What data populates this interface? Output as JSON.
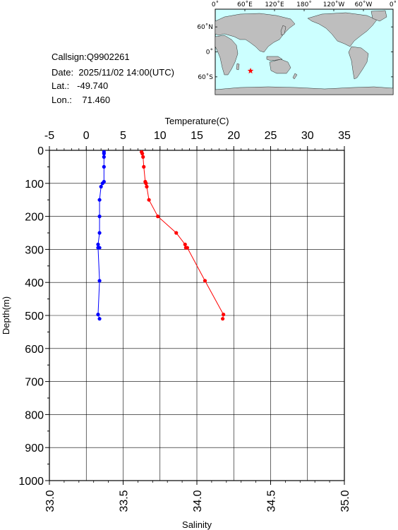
{
  "meta": {
    "callsign_label": "Callsign:",
    "callsign": "Q9902261",
    "date_label": "Date:",
    "date": "2025/11/02 14:00(UTC)",
    "lat_label": "Lat.:",
    "lat": "-49.740",
    "lon_label": "Lon.:",
    "lon": "71.460"
  },
  "map": {
    "lon_labels": [
      "0˚",
      "60˚E",
      "120˚E",
      "180˚",
      "120˚W",
      "60˚W",
      "0˚"
    ],
    "lat_labels": [
      "60˚N",
      "0˚",
      "60˚S"
    ],
    "station_lat": -49.74,
    "station_lon": 71.46,
    "colors": {
      "ocean": "#ccffff",
      "land": "#bebebe",
      "marker": "#ff0000"
    }
  },
  "chart_data": {
    "type": "line",
    "ylabel": "Depth(m)",
    "ylim": [
      1000,
      0
    ],
    "y_ticks": [
      "0",
      "100",
      "200",
      "300",
      "400",
      "500",
      "600",
      "700",
      "800",
      "900",
      "1000"
    ],
    "x_top": {
      "label": "Temperature(C)",
      "lim": [
        -5,
        35
      ],
      "ticks": [
        "-5",
        "0",
        "5",
        "10",
        "15",
        "20",
        "25",
        "30",
        "35"
      ]
    },
    "x_bottom": {
      "label": "Salinity",
      "lim": [
        33.0,
        35.0
      ],
      "ticks": [
        "33.0",
        "33.5",
        "34.0",
        "34.5",
        "35.0"
      ]
    },
    "grid": true,
    "series": [
      {
        "axis": "top",
        "color": "#ff0000",
        "points": [
          [
            7.5,
            5
          ],
          [
            7.6,
            10
          ],
          [
            7.7,
            20
          ],
          [
            7.8,
            50
          ],
          [
            8.0,
            95
          ],
          [
            8.1,
            100
          ],
          [
            8.2,
            110
          ],
          [
            8.5,
            150
          ],
          [
            9.7,
            200
          ],
          [
            12.2,
            250
          ],
          [
            13.4,
            285
          ],
          [
            13.5,
            295
          ],
          [
            13.7,
            295
          ],
          [
            16.1,
            395
          ],
          [
            18.6,
            497
          ],
          [
            18.5,
            510
          ]
        ]
      },
      {
        "axis": "bottom",
        "color": "#0000ff",
        "points": [
          [
            33.37,
            5
          ],
          [
            33.37,
            10
          ],
          [
            33.37,
            20
          ],
          [
            33.37,
            50
          ],
          [
            33.37,
            95
          ],
          [
            33.36,
            100
          ],
          [
            33.35,
            110
          ],
          [
            33.34,
            150
          ],
          [
            33.34,
            200
          ],
          [
            33.34,
            250
          ],
          [
            33.33,
            285
          ],
          [
            33.34,
            295
          ],
          [
            33.33,
            295
          ],
          [
            33.34,
            395
          ],
          [
            33.33,
            497
          ],
          [
            33.34,
            510
          ]
        ]
      }
    ]
  }
}
